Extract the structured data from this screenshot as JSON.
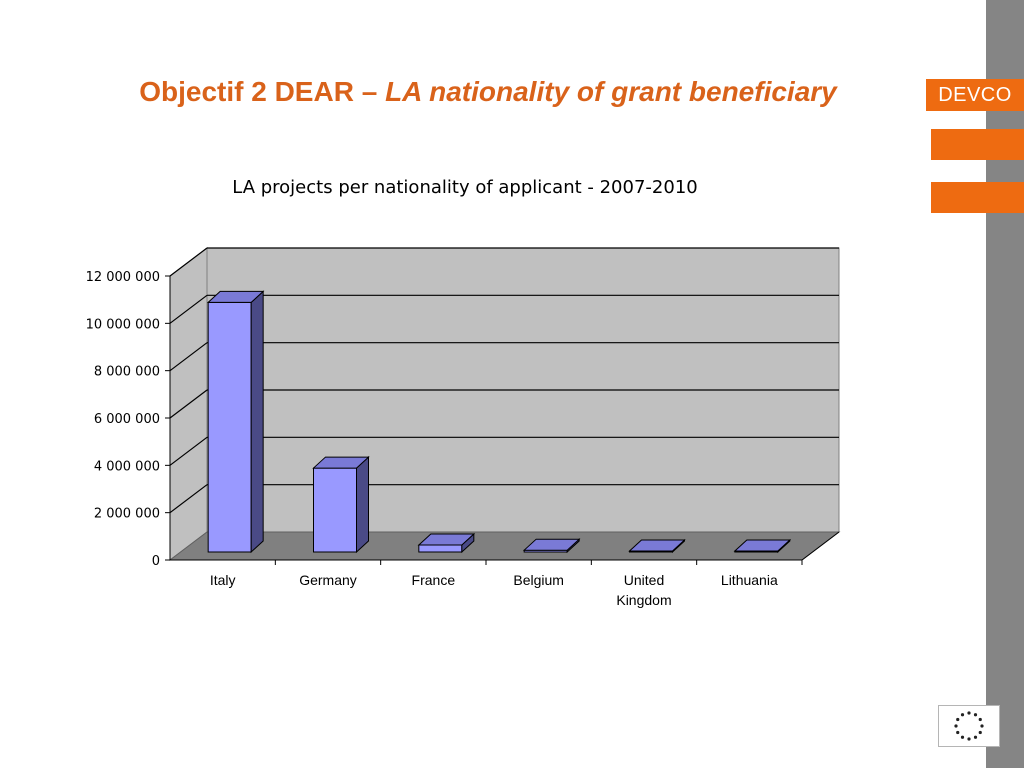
{
  "slide": {
    "title_prefix": "Objectif 2 DEAR – ",
    "title_italic": "LA nationality of grant beneficiary",
    "brand_label": "DEVCO"
  },
  "colors": {
    "accent_orange": "#ee6b11",
    "title_orange": "#d9621a",
    "side_bar_gray": "#858585",
    "bar_front": "#9999ff",
    "bar_side": "#4a4a86",
    "plot_wall": "#c0c0c0",
    "plot_floor": "#808080"
  },
  "chart_data": {
    "type": "bar",
    "title": "LA projects per nationality of applicant - 2007-2010",
    "categories": [
      "Italy",
      "Germany",
      "France",
      "Belgium",
      "United Kingdom",
      "Lithuania"
    ],
    "category_lines": [
      [
        "Italy"
      ],
      [
        "Germany"
      ],
      [
        "France"
      ],
      [
        "Belgium"
      ],
      [
        "United",
        "Kingdom"
      ],
      [
        "Lithuania"
      ]
    ],
    "values": [
      10800000,
      3800000,
      550000,
      330000,
      150000,
      60000
    ],
    "ylim": [
      0,
      12000000
    ],
    "yticks": [
      0,
      2000000,
      4000000,
      6000000,
      8000000,
      10000000,
      12000000
    ],
    "ytick_labels": [
      "0",
      "2 000 000",
      "4 000 000",
      "6 000 000",
      "8 000 000",
      "10 000 000",
      "12 000 000"
    ],
    "xlabel": "",
    "ylabel": "",
    "grid": true,
    "legend": false,
    "style": "3d-column"
  },
  "footer": {
    "logo_icon": "eu-flag-icon"
  }
}
